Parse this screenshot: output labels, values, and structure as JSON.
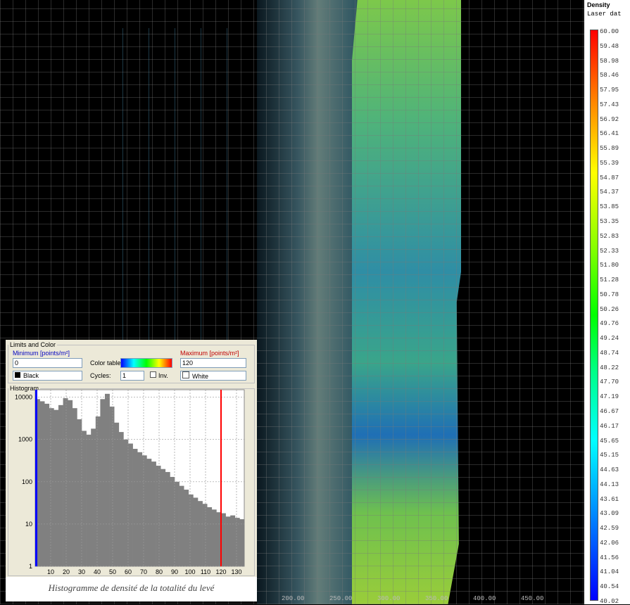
{
  "legend": {
    "title": "Density",
    "subtitle": "Laser dat",
    "labels": [
      "60.00",
      "59.48",
      "58.98",
      "58.46",
      "57.95",
      "57.43",
      "56.92",
      "56.41",
      "55.89",
      "55.39",
      "54.87",
      "54.37",
      "53.85",
      "53.35",
      "52.83",
      "52.33",
      "51.80",
      "51.28",
      "50.78",
      "50.26",
      "49.76",
      "49.24",
      "48.74",
      "48.22",
      "47.70",
      "47.19",
      "46.67",
      "46.17",
      "45.65",
      "45.15",
      "44.63",
      "44.13",
      "43.61",
      "43.09",
      "42.59",
      "42.06",
      "41.56",
      "41.04",
      "40.54",
      "40.02"
    ]
  },
  "map": {
    "x_labels": [
      "200.00",
      "250.00",
      "300.00",
      "350.00",
      "400.00",
      "450.00"
    ]
  },
  "limits": {
    "title": "Limits and Color",
    "minimum": {
      "label": "Minimum [points/m²]",
      "value": "0",
      "color": "Black"
    },
    "color_table_label": "Color table:",
    "cycles_label": "Cycles:",
    "cycles": "1",
    "inverse_label": "Inv.",
    "maximum": {
      "label": "Maximum [points/m²]",
      "value": "120",
      "color": "White"
    }
  },
  "histogram": {
    "title": "Histogram",
    "log_y": true,
    "color": "#808080",
    "bins": [
      0,
      3,
      6,
      9,
      12,
      15,
      18,
      21,
      24,
      27,
      30,
      33,
      36,
      39,
      42,
      45,
      48,
      51,
      54,
      57,
      60,
      63,
      66,
      69,
      72,
      75,
      78,
      81,
      84,
      87,
      90,
      93,
      96,
      99,
      102,
      105,
      108,
      111,
      114,
      117,
      120,
      123,
      126,
      129,
      132,
      135
    ],
    "values": [
      9000,
      8000,
      7000,
      5500,
      5000,
      6500,
      9500,
      8500,
      5500,
      3000,
      1600,
      1300,
      1800,
      3500,
      9000,
      12000,
      6000,
      2500,
      1500,
      1000,
      800,
      600,
      500,
      420,
      350,
      300,
      240,
      200,
      170,
      130,
      100,
      80,
      65,
      50,
      42,
      35,
      30,
      25,
      22,
      19,
      18,
      15,
      16,
      14,
      13
    ],
    "xlim": [
      0,
      135
    ],
    "ylim": [
      1,
      15000
    ],
    "xticks": [
      10,
      20,
      30,
      40,
      50,
      60,
      70,
      80,
      90,
      100,
      110,
      120,
      130
    ],
    "yticks": [
      1,
      10,
      100,
      1000,
      10000
    ]
  },
  "caption": "Histogramme de densité de la totalité du levé"
}
